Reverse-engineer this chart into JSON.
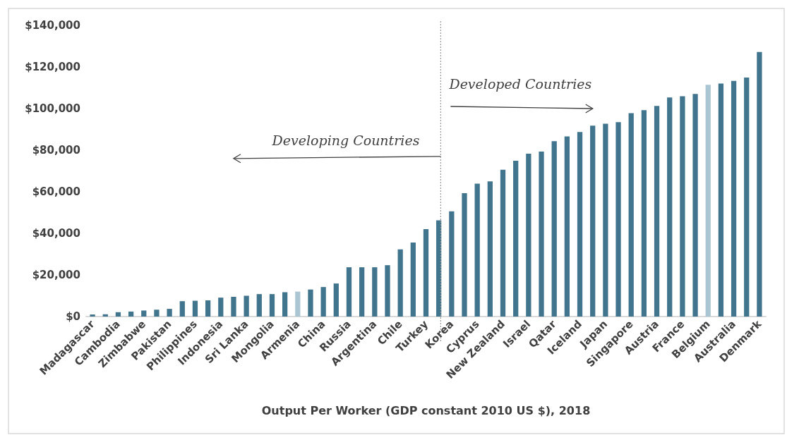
{
  "chart_data": {
    "type": "bar",
    "xlabel": "Output Per Worker (GDP constant 2010 US $), 2018",
    "annotations": [
      "Developing Countries",
      "Developed Countries"
    ],
    "categories": [
      "Madagascar",
      null,
      "Cambodia",
      null,
      "Zimbabwe",
      null,
      "Pakistan",
      null,
      "Philippines",
      null,
      "Indonesia",
      null,
      "Sri Lanka",
      null,
      "Mongolia",
      null,
      "Armenia",
      null,
      "China",
      null,
      "Russia",
      null,
      "Argentina",
      null,
      "Chile",
      null,
      "Turkey",
      null,
      "Korea",
      null,
      "Cyprus",
      null,
      "New Zealand",
      null,
      "Israel",
      null,
      "Qatar",
      null,
      "Iceland",
      null,
      "Japan",
      null,
      "Singapore",
      null,
      "Austria",
      null,
      "France",
      null,
      "Belgium",
      null,
      "Australia",
      null,
      "Denmark"
    ],
    "values": [
      1000,
      1100,
      2100,
      2400,
      2900,
      3300,
      3700,
      7400,
      7600,
      7800,
      9100,
      9500,
      10000,
      10800,
      10800,
      11700,
      12000,
      13000,
      14200,
      15900,
      23700,
      23700,
      23700,
      24700,
      32300,
      35600,
      42000,
      46300,
      50600,
      59300,
      63900,
      65000,
      70600,
      74900,
      78300,
      79300,
      84300,
      86600,
      88700,
      91800,
      92700,
      93500,
      97800,
      99200,
      101300,
      105300,
      105900,
      107000,
      111400,
      112000,
      113300,
      114900,
      127200
    ],
    "colors": [
      "#41748d",
      "#41748d",
      "#41748d",
      "#41748d",
      "#41748d",
      "#41748d",
      "#41748d",
      "#41748d",
      "#41748d",
      "#41748d",
      "#41748d",
      "#41748d",
      "#41748d",
      "#41748d",
      "#41748d",
      "#41748d",
      "#abc6d3",
      "#41748d",
      "#41748d",
      "#41748d",
      "#41748d",
      "#41748d",
      "#41748d",
      "#41748d",
      "#41748d",
      "#41748d",
      "#41748d",
      "#41748d",
      "#41748d",
      "#41748d",
      "#41748d",
      "#41748d",
      "#41748d",
      "#41748d",
      "#41748d",
      "#41748d",
      "#41748d",
      "#41748d",
      "#41748d",
      "#41748d",
      "#41748d",
      "#41748d",
      "#41748d",
      "#41748d",
      "#41748d",
      "#41748d",
      "#41748d",
      "#41748d",
      "#abc6d3",
      "#41748d",
      "#41748d",
      "#41748d",
      "#41748d"
    ],
    "ylim": [
      0,
      140000
    ],
    "yticks": [
      {
        "value": 0,
        "label": "$0"
      },
      {
        "value": 20000,
        "label": "$20,000"
      },
      {
        "value": 40000,
        "label": "$40,000"
      },
      {
        "value": 60000,
        "label": "$60,000"
      },
      {
        "value": 80000,
        "label": "$80,000"
      },
      {
        "value": 100000,
        "label": "$100,000"
      },
      {
        "value": 120000,
        "label": "$120,000"
      },
      {
        "value": 140000,
        "label": "$140,000"
      }
    ]
  }
}
